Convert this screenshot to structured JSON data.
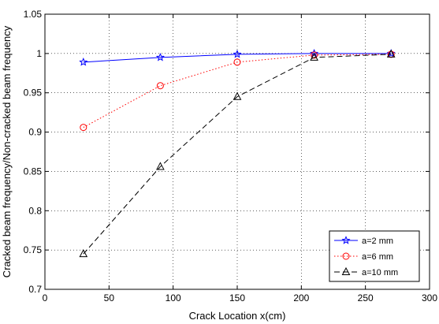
{
  "chart_data": {
    "type": "line",
    "title": "",
    "xlabel": "Crack Location x(cm)",
    "ylabel": "Cracked beam frequency/Non-cracked beam frequency",
    "xlim": [
      0,
      300
    ],
    "ylim": [
      0.7,
      1.05
    ],
    "xticks": [
      0,
      50,
      100,
      150,
      200,
      250,
      300
    ],
    "yticks": [
      0.7,
      0.75,
      0.8,
      0.85,
      0.9,
      0.95,
      1,
      1.05
    ],
    "xtick_labels": [
      "0",
      "50",
      "100",
      "150",
      "200",
      "250",
      "300"
    ],
    "ytick_labels": [
      "0.7",
      "0.75",
      "0.8",
      "0.85",
      "0.9",
      "0.95",
      "1",
      "1.05"
    ],
    "grid": true,
    "legend_position": "bottom-right",
    "series": [
      {
        "name": "a=2 mm",
        "color": "#0000ff",
        "line_style": "solid",
        "marker": "star",
        "x": [
          30,
          90,
          150,
          210,
          270
        ],
        "y": [
          0.989,
          0.995,
          0.999,
          1.0,
          1.0
        ]
      },
      {
        "name": "a=6 mm",
        "color": "#ff0000",
        "line_style": "dotted",
        "marker": "circle",
        "x": [
          30,
          90,
          150,
          210,
          270
        ],
        "y": [
          0.906,
          0.959,
          0.989,
          0.998,
          0.999
        ]
      },
      {
        "name": "a=10 mm",
        "color": "#000000",
        "line_style": "dashed",
        "marker": "triangle",
        "x": [
          30,
          90,
          150,
          210,
          270
        ],
        "y": [
          0.745,
          0.856,
          0.945,
          0.995,
          0.999
        ]
      }
    ]
  }
}
